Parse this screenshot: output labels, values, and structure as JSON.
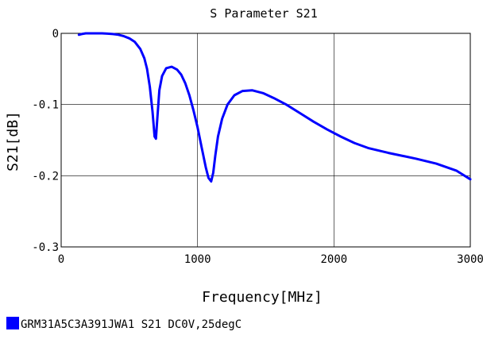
{
  "chart_data": {
    "type": "line",
    "title": "S Parameter S21",
    "xlabel": "Frequency[MHz]",
    "ylabel": "S21[dB]",
    "xlim": [
      0,
      3000
    ],
    "ylim": [
      -0.3,
      0
    ],
    "x_ticks": [
      0,
      1000,
      2000,
      3000
    ],
    "x_tick_labels": [
      "0",
      "1000",
      "2000",
      "3000"
    ],
    "y_ticks": [
      0,
      -0.1,
      -0.2,
      -0.3
    ],
    "y_tick_labels": [
      "0",
      "-0.1",
      "-0.2",
      "-0.3"
    ],
    "grid": true,
    "legend_position": "bottom-left",
    "series": [
      {
        "name": "GRM31A5C3A391JWA1 S21 DC0V,25degC",
        "color": "#0000ff",
        "x": [
          130,
          150,
          180,
          220,
          260,
          300,
          340,
          380,
          420,
          460,
          500,
          540,
          580,
          610,
          630,
          650,
          670,
          685,
          695,
          705,
          720,
          740,
          770,
          810,
          850,
          880,
          910,
          940,
          970,
          1000,
          1030,
          1060,
          1080,
          1100,
          1115,
          1130,
          1150,
          1180,
          1220,
          1270,
          1330,
          1400,
          1480,
          1560,
          1650,
          1750,
          1850,
          1950,
          2050,
          2150,
          2250,
          2400,
          2600,
          2750,
          2900,
          3000
        ],
        "y": [
          -0.002,
          -0.001,
          0.0,
          0.0,
          0.0,
          0.0,
          -0.0005,
          -0.001,
          -0.002,
          -0.004,
          -0.007,
          -0.012,
          -0.022,
          -0.035,
          -0.05,
          -0.075,
          -0.11,
          -0.145,
          -0.148,
          -0.12,
          -0.08,
          -0.06,
          -0.049,
          -0.047,
          -0.051,
          -0.058,
          -0.07,
          -0.087,
          -0.108,
          -0.132,
          -0.16,
          -0.188,
          -0.203,
          -0.208,
          -0.196,
          -0.172,
          -0.145,
          -0.12,
          -0.1,
          -0.087,
          -0.081,
          -0.08,
          -0.084,
          -0.091,
          -0.1,
          -0.112,
          -0.124,
          -0.135,
          -0.145,
          -0.154,
          -0.161,
          -0.168,
          -0.176,
          -0.183,
          -0.193,
          -0.205
        ]
      }
    ]
  }
}
